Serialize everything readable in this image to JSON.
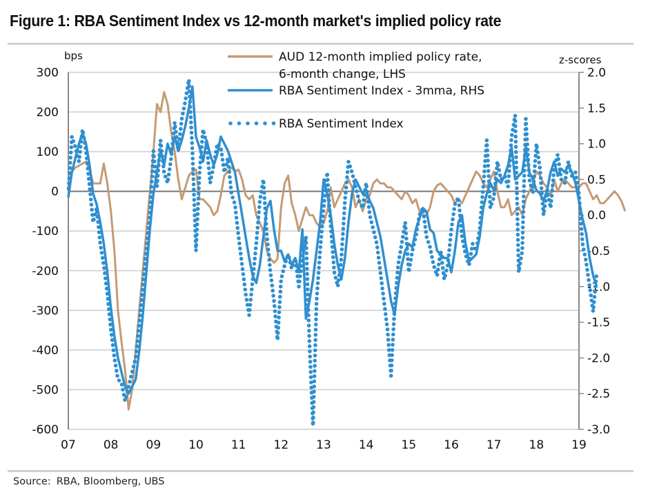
{
  "title": "Figure 1: RBA Sentiment Index vs 12-month market's implied policy rate",
  "source": {
    "label": "Source:",
    "text": "RBA, Bloomberg, UBS"
  },
  "colors": {
    "aud": "#c49a74",
    "sentiment": "#2f8fcf",
    "grid": "#cccccc",
    "zero": "#777777",
    "axis": "#888888"
  },
  "chart_data": {
    "type": "line",
    "title": "Figure 1: RBA Sentiment Index vs 12-month market's implied policy rate",
    "xlabel": "",
    "ylabel_left": "bps",
    "ylabel_right": "z-scores",
    "x_ticks": [
      "07",
      "08",
      "09",
      "10",
      "11",
      "12",
      "13",
      "14",
      "15",
      "16",
      "17",
      "18",
      "19"
    ],
    "x_range": [
      2007,
      2019
    ],
    "y_left": {
      "range": [
        -600,
        300
      ],
      "ticks": [
        "300",
        "200",
        "100",
        "0",
        "-100",
        "-200",
        "-300",
        "-400",
        "-500",
        "-600"
      ]
    },
    "y_right": {
      "range": [
        -3.0,
        2.0
      ],
      "ticks": [
        "2.0",
        "1.5",
        "1.0",
        "0.5",
        "0.0",
        "-0.5",
        "-1.0",
        "-1.5",
        "-2.0",
        "-2.5",
        "-3.0"
      ]
    },
    "grid": true,
    "legend": {
      "position": "top-center",
      "entries": [
        {
          "label_lines": [
            "AUD 12-month implied policy rate,",
            "6-month change, LHS"
          ],
          "style": "solid",
          "series": "aud"
        },
        {
          "label_lines": [
            "RBA Sentiment Index - 3mma, RHS"
          ],
          "style": "solid",
          "series": "sentiment_3mma"
        },
        {
          "label_lines": [
            "RBA Sentiment Index"
          ],
          "style": "dotted",
          "series": "sentiment"
        }
      ]
    },
    "x_start": 2007.0,
    "x_step_months": 1,
    "series": [
      {
        "name": "AUD 12-month implied policy rate, 6-month change, LHS",
        "key": "aud",
        "axis": "left",
        "values": [
          40,
          50,
          60,
          65,
          70,
          75,
          55,
          20,
          20,
          20,
          70,
          20,
          -50,
          -150,
          -300,
          -380,
          -450,
          -550,
          -500,
          -400,
          -300,
          -200,
          -100,
          0,
          100,
          220,
          200,
          250,
          220,
          150,
          100,
          30,
          -20,
          10,
          40,
          50,
          55,
          -20,
          -20,
          -30,
          -40,
          -60,
          -50,
          -10,
          40,
          50,
          60,
          50,
          55,
          30,
          -10,
          -20,
          -10,
          -60,
          -80,
          -100,
          -150,
          -170,
          -180,
          -170,
          -40,
          20,
          40,
          -30,
          -60,
          -100,
          -70,
          -40,
          -60,
          -60,
          -80,
          -90,
          -80,
          -50,
          10,
          -40,
          -20,
          0,
          20,
          30,
          10,
          -40,
          -20,
          -50,
          -20,
          -10,
          20,
          30,
          20,
          20,
          10,
          10,
          0,
          -10,
          -20,
          0,
          -10,
          -30,
          -20,
          -50,
          -60,
          -60,
          -40,
          0,
          15,
          20,
          10,
          0,
          -10,
          -30,
          -20,
          -30,
          -10,
          10,
          30,
          50,
          40,
          20,
          10,
          30,
          50,
          0,
          -40,
          -40,
          -20,
          -60,
          -50,
          -40,
          -60,
          -20,
          0,
          20,
          50,
          40,
          20,
          10,
          -10,
          30,
          0,
          20,
          30,
          20,
          10,
          10,
          10,
          20,
          20,
          0,
          -20,
          -10,
          -30,
          -30,
          -20,
          -10,
          0,
          -10,
          -25,
          -50
        ]
      },
      {
        "name": "RBA Sentiment Index - 3mma, RHS",
        "key": "sentiment_3mma",
        "axis": "right",
        "values": [
          0.25,
          0.6,
          0.8,
          1.0,
          1.15,
          1.0,
          0.7,
          0.3,
          0.15,
          -0.1,
          -0.4,
          -0.8,
          -1.3,
          -1.7,
          -2.0,
          -2.2,
          -2.4,
          -2.5,
          -2.4,
          -2.3,
          -1.9,
          -1.4,
          -0.8,
          -0.2,
          0.3,
          0.6,
          0.9,
          0.7,
          1.0,
          0.85,
          1.1,
          0.9,
          1.05,
          1.25,
          1.5,
          1.8,
          1.1,
          0.95,
          0.75,
          1.05,
          0.85,
          0.7,
          0.85,
          1.1,
          1.0,
          0.9,
          0.75,
          0.6,
          0.3,
          0.0,
          -0.3,
          -0.6,
          -0.85,
          -0.95,
          -0.7,
          -0.3,
          0.1,
          0.2,
          -0.2,
          -0.5,
          -0.5,
          -0.65,
          -0.55,
          -0.7,
          -0.6,
          -0.8,
          -0.2,
          -1.45,
          -1.2,
          -0.9,
          -0.5,
          -0.1,
          0.5,
          0.3,
          0.0,
          -0.4,
          -0.7,
          -0.9,
          -0.6,
          -0.1,
          0.3,
          0.5,
          0.4,
          0.3,
          0.35,
          0.2,
          0.1,
          -0.1,
          -0.3,
          -0.6,
          -0.9,
          -1.2,
          -1.4,
          -1.0,
          -0.7,
          -0.5,
          -0.4,
          -0.45,
          -0.2,
          -0.05,
          0.1,
          0.05,
          -0.2,
          -0.25,
          -0.5,
          -0.55,
          -0.6,
          -0.6,
          -0.8,
          -0.5,
          -0.1,
          0.0,
          -0.4,
          -0.65,
          -0.6,
          -0.55,
          -0.3,
          0.1,
          0.3,
          0.45,
          0.35,
          0.5,
          0.45,
          0.55,
          0.7,
          0.95,
          0.5,
          0.55,
          0.6,
          0.95,
          0.6,
          0.5,
          0.35,
          0.3,
          0.2,
          0.35,
          0.6,
          0.75,
          0.55,
          0.65,
          0.6,
          0.7,
          0.6,
          0.45,
          0.2,
          -0.05,
          -0.25,
          -0.6,
          -0.85,
          -1.0
        ]
      },
      {
        "name": "RBA Sentiment Index",
        "key": "sentiment",
        "axis": "right",
        "values": [
          0.3,
          1.1,
          0.95,
          0.75,
          1.2,
          0.9,
          0.4,
          -0.1,
          0.1,
          -0.4,
          -0.7,
          -1.1,
          -1.6,
          -2.0,
          -2.3,
          -2.35,
          -2.6,
          -2.4,
          -2.2,
          -2.0,
          -1.5,
          -1.0,
          -0.5,
          0.0,
          0.9,
          0.4,
          1.05,
          0.6,
          0.45,
          0.8,
          1.3,
          0.9,
          1.35,
          1.6,
          1.9,
          0.9,
          -0.5,
          0.6,
          1.2,
          1.0,
          0.45,
          0.7,
          1.0,
          0.95,
          0.6,
          0.8,
          0.3,
          0.15,
          -0.3,
          -0.7,
          -1.1,
          -1.4,
          -0.9,
          -0.4,
          0.2,
          0.5,
          -0.3,
          -0.8,
          -1.2,
          -1.75,
          -0.9,
          -0.7,
          -0.55,
          -0.75,
          -0.6,
          -1.0,
          -0.6,
          -0.3,
          -1.8,
          -2.95,
          -1.2,
          -0.5,
          0.1,
          0.6,
          -0.15,
          -0.8,
          -1.0,
          -0.6,
          0.2,
          0.75,
          0.6,
          0.4,
          0.2,
          0.1,
          0.45,
          0.0,
          -0.2,
          -0.4,
          -0.8,
          -1.2,
          -1.6,
          -2.25,
          -1.3,
          -0.7,
          -0.4,
          -0.1,
          -0.8,
          -0.5,
          -0.3,
          0.0,
          0.1,
          -0.3,
          -0.45,
          -0.7,
          -0.85,
          -0.5,
          -0.9,
          -0.7,
          -0.2,
          0.15,
          0.25,
          -0.3,
          -0.55,
          -0.7,
          -0.4,
          -0.5,
          -0.2,
          0.4,
          1.05,
          0.1,
          0.25,
          0.75,
          0.5,
          0.55,
          0.4,
          1.1,
          1.4,
          -0.8,
          -0.5,
          1.35,
          0.5,
          0.3,
          1.0,
          0.65,
          0.0,
          0.35,
          0.1,
          0.65,
          0.85,
          0.5,
          0.45,
          0.75,
          0.55,
          0.6,
          0.3,
          -0.4,
          -0.65,
          -1.0,
          -1.35,
          -0.8
        ]
      }
    ]
  }
}
